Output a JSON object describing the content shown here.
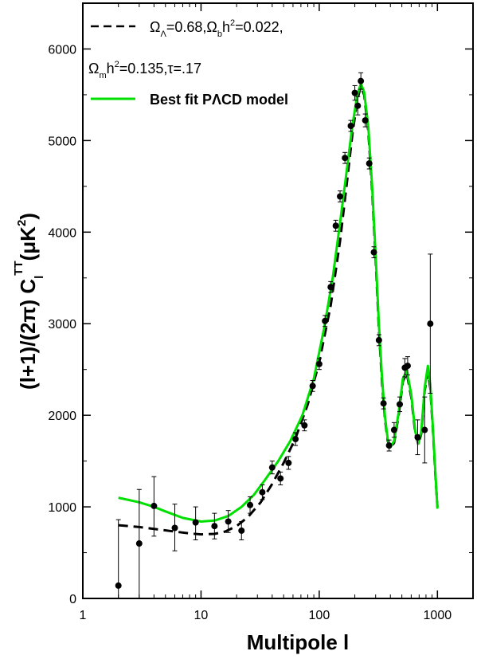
{
  "chart_data": {
    "type": "scatter",
    "xscale": "log",
    "xlim": [
      1,
      2000
    ],
    "ylim": [
      0,
      6500
    ],
    "xlabel": "Multipole l",
    "ylabel": "(l+1)/(2π) C_l^TT (μK^2)",
    "x_ticks": [
      1,
      10,
      100,
      1000
    ],
    "x_tick_labels": [
      "1",
      "10",
      "100",
      "1000"
    ],
    "y_ticks": [
      0,
      1000,
      2000,
      3000,
      4000,
      5000,
      6000
    ],
    "y_tick_labels": [
      "0",
      "1000",
      "2000",
      "3000",
      "4000",
      "5000",
      "6000"
    ],
    "legend_position": "top-left",
    "legend": {
      "dashed_line1": "Ω_Λ=0.68,Ω_b h^2=0.022,",
      "dashed_line2": "Ω_m h^2=0.135,τ=.17",
      "solid": "Best fit PΛCD model"
    },
    "colors": {
      "data": "#000000",
      "dashed_model": "#000000",
      "best_fit": "#00e000"
    },
    "series": [
      {
        "type": "scatter_errorbars",
        "points": [
          {
            "x": 2,
            "y": 140,
            "lo": 0,
            "hi": 860
          },
          {
            "x": 3,
            "y": 600,
            "lo": 0,
            "hi": 1190
          },
          {
            "x": 4,
            "y": 1010,
            "lo": 680,
            "hi": 1330
          },
          {
            "x": 6,
            "y": 770,
            "lo": 520,
            "hi": 1030
          },
          {
            "x": 9,
            "y": 830,
            "lo": 640,
            "hi": 1000
          },
          {
            "x": 13,
            "y": 790,
            "lo": 650,
            "hi": 930
          },
          {
            "x": 17,
            "y": 840,
            "lo": 720,
            "hi": 960
          },
          {
            "x": 22,
            "y": 740,
            "lo": 640,
            "hi": 840
          },
          {
            "x": 26,
            "y": 1020,
            "lo": 930,
            "hi": 1110
          },
          {
            "x": 33,
            "y": 1160,
            "lo": 1080,
            "hi": 1240
          },
          {
            "x": 40,
            "y": 1430,
            "lo": 1360,
            "hi": 1500
          },
          {
            "x": 47,
            "y": 1310,
            "lo": 1240,
            "hi": 1380
          },
          {
            "x": 55,
            "y": 1480,
            "lo": 1410,
            "hi": 1550
          },
          {
            "x": 63,
            "y": 1740,
            "lo": 1670,
            "hi": 1810
          },
          {
            "x": 75,
            "y": 1890,
            "lo": 1830,
            "hi": 1950
          },
          {
            "x": 88,
            "y": 2320,
            "lo": 2260,
            "hi": 2380
          },
          {
            "x": 100,
            "y": 2560,
            "lo": 2500,
            "hi": 2620
          },
          {
            "x": 112,
            "y": 3030,
            "lo": 2970,
            "hi": 3090
          },
          {
            "x": 125,
            "y": 3400,
            "lo": 3340,
            "hi": 3460
          },
          {
            "x": 138,
            "y": 4070,
            "lo": 4010,
            "hi": 4130
          },
          {
            "x": 150,
            "y": 4390,
            "lo": 4330,
            "hi": 4450
          },
          {
            "x": 165,
            "y": 4810,
            "lo": 4750,
            "hi": 4870
          },
          {
            "x": 185,
            "y": 5160,
            "lo": 5100,
            "hi": 5220
          },
          {
            "x": 200,
            "y": 5520,
            "lo": 5440,
            "hi": 5600
          },
          {
            "x": 212,
            "y": 5380,
            "lo": 5280,
            "hi": 5480
          },
          {
            "x": 225,
            "y": 5650,
            "lo": 5560,
            "hi": 5740
          },
          {
            "x": 245,
            "y": 5220,
            "lo": 5150,
            "hi": 5290
          },
          {
            "x": 265,
            "y": 4750,
            "lo": 4690,
            "hi": 4810
          },
          {
            "x": 290,
            "y": 3780,
            "lo": 3720,
            "hi": 3840
          },
          {
            "x": 320,
            "y": 2820,
            "lo": 2760,
            "hi": 2880
          },
          {
            "x": 350,
            "y": 2130,
            "lo": 2070,
            "hi": 2190
          },
          {
            "x": 390,
            "y": 1670,
            "lo": 1610,
            "hi": 1730
          },
          {
            "x": 430,
            "y": 1840,
            "lo": 1760,
            "hi": 1920
          },
          {
            "x": 480,
            "y": 2120,
            "lo": 2040,
            "hi": 2200
          },
          {
            "x": 530,
            "y": 2520,
            "lo": 2420,
            "hi": 2620
          },
          {
            "x": 560,
            "y": 2540,
            "lo": 2440,
            "hi": 2640
          },
          {
            "x": 680,
            "y": 1760,
            "lo": 1570,
            "hi": 1950
          },
          {
            "x": 780,
            "y": 1840,
            "lo": 1480,
            "hi": 2200
          },
          {
            "x": 870,
            "y": 3000,
            "lo": 2240,
            "hi": 3760
          }
        ]
      },
      {
        "type": "line_dashed",
        "points": [
          [
            2,
            800
          ],
          [
            3,
            780
          ],
          [
            4,
            760
          ],
          [
            6,
            730
          ],
          [
            8,
            710
          ],
          [
            10,
            700
          ],
          [
            13,
            705
          ],
          [
            16,
            730
          ],
          [
            20,
            790
          ],
          [
            25,
            890
          ],
          [
            32,
            1050
          ],
          [
            40,
            1250
          ],
          [
            50,
            1480
          ],
          [
            63,
            1750
          ],
          [
            80,
            2120
          ],
          [
            100,
            2580
          ],
          [
            125,
            3200
          ],
          [
            150,
            3900
          ],
          [
            170,
            4500
          ],
          [
            190,
            5050
          ],
          [
            210,
            5450
          ],
          [
            225,
            5590
          ],
          [
            240,
            5500
          ],
          [
            260,
            5100
          ],
          [
            280,
            4450
          ],
          [
            300,
            3700
          ],
          [
            320,
            2920
          ],
          [
            340,
            2350
          ],
          [
            360,
            1950
          ],
          [
            380,
            1720
          ],
          [
            400,
            1640
          ],
          [
            430,
            1700
          ],
          [
            470,
            2000
          ],
          [
            510,
            2370
          ],
          [
            550,
            2460
          ],
          [
            600,
            2200
          ],
          [
            650,
            1800
          ],
          [
            690,
            1680
          ],
          [
            730,
            1800
          ],
          [
            780,
            2270
          ],
          [
            830,
            2470
          ],
          [
            870,
            2300
          ],
          [
            920,
            1800
          ],
          [
            960,
            1350
          ],
          [
            1000,
            1000
          ]
        ]
      },
      {
        "type": "line_solid",
        "points": [
          [
            2,
            1100
          ],
          [
            3,
            1050
          ],
          [
            4,
            1000
          ],
          [
            5,
            950
          ],
          [
            7,
            880
          ],
          [
            10,
            840
          ],
          [
            13,
            850
          ],
          [
            17,
            900
          ],
          [
            22,
            1000
          ],
          [
            28,
            1130
          ],
          [
            35,
            1300
          ],
          [
            45,
            1500
          ],
          [
            57,
            1720
          ],
          [
            72,
            2000
          ],
          [
            90,
            2400
          ],
          [
            110,
            2950
          ],
          [
            130,
            3500
          ],
          [
            150,
            4100
          ],
          [
            170,
            4650
          ],
          [
            190,
            5150
          ],
          [
            210,
            5500
          ],
          [
            225,
            5620
          ],
          [
            240,
            5530
          ],
          [
            260,
            5150
          ],
          [
            280,
            4500
          ],
          [
            300,
            3750
          ],
          [
            320,
            2980
          ],
          [
            340,
            2400
          ],
          [
            360,
            1980
          ],
          [
            380,
            1740
          ],
          [
            400,
            1650
          ],
          [
            430,
            1720
          ],
          [
            470,
            2030
          ],
          [
            510,
            2400
          ],
          [
            550,
            2490
          ],
          [
            600,
            2230
          ],
          [
            650,
            1820
          ],
          [
            690,
            1690
          ],
          [
            730,
            1820
          ],
          [
            780,
            2300
          ],
          [
            830,
            2540
          ],
          [
            870,
            2340
          ],
          [
            920,
            1820
          ],
          [
            960,
            1380
          ],
          [
            1000,
            980
          ]
        ]
      }
    ]
  }
}
